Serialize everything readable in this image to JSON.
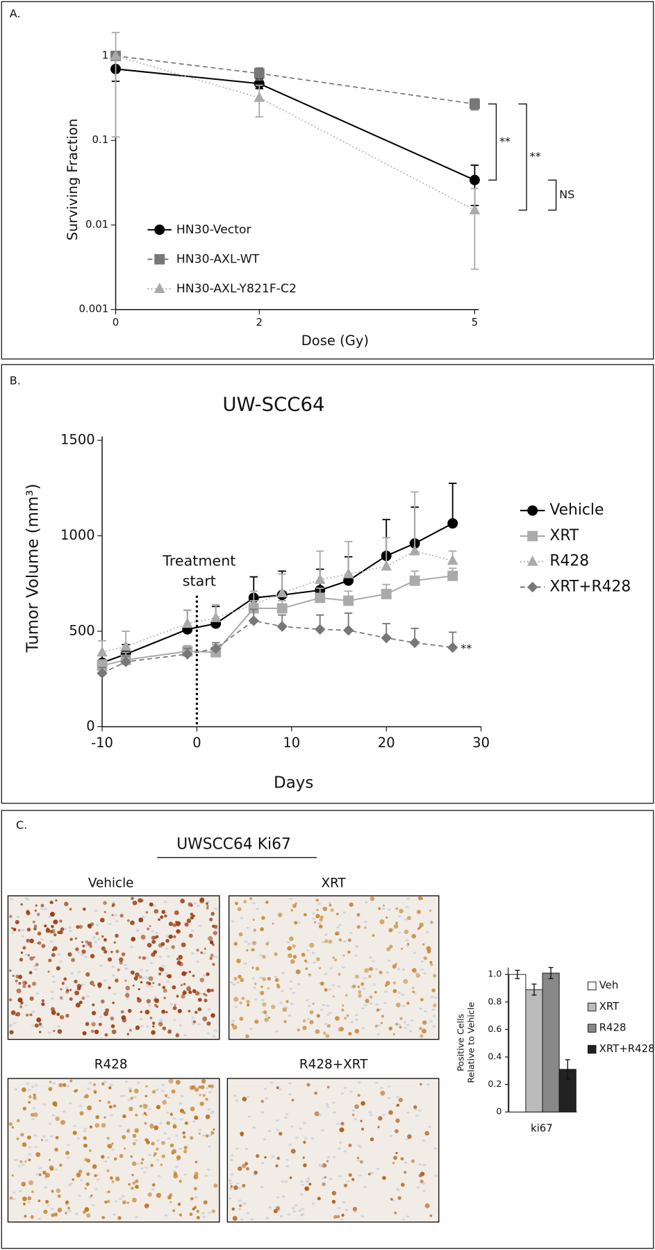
{
  "chart_data": [
    {
      "type": "line",
      "log_y": true,
      "ylabel": "Surviving Fraction",
      "xlabel": "Dose (Gy)",
      "x": [
        0,
        2,
        5
      ],
      "xlim": [
        0,
        5
      ],
      "xticks": [
        0,
        2,
        5
      ],
      "ylim": [
        0.001,
        1
      ],
      "yticks": [
        1,
        0.1,
        0.01,
        0.001
      ],
      "series": [
        {
          "name": "HN30-Vector",
          "color": "#000000",
          "marker": "circle",
          "dash": "solid",
          "values": [
            0.7,
            0.47,
            0.034
          ],
          "errors": [
            0.2,
            0.06,
            0.017
          ]
        },
        {
          "name": "HN30-AXL-WT",
          "color": "#777777",
          "marker": "square",
          "dash": "dashed",
          "values": [
            1.0,
            0.62,
            0.27
          ],
          "errors": [
            0.1,
            0.1,
            0.04
          ]
        },
        {
          "name": "HN30-AXL-Y821F-C2",
          "color": "#aaaaaa",
          "marker": "triangle",
          "dash": "dotted",
          "values": [
            1.0,
            0.32,
            0.015
          ],
          "errors": [
            0.89,
            0.13,
            0.012
          ]
        }
      ],
      "annotations": [
        "**",
        "**",
        "NS"
      ]
    },
    {
      "type": "line",
      "title": "UW-SCC64",
      "ylabel": "Tumor Volume (mm³)",
      "xlabel": "Days",
      "x": [
        -10,
        -7.5,
        -1,
        2,
        6,
        9,
        13,
        16,
        20,
        23,
        27
      ],
      "xlim": [
        -10,
        30
      ],
      "xticks": [
        -10,
        0,
        10,
        20,
        30
      ],
      "ylim": [
        0,
        1500
      ],
      "yticks": [
        0,
        500,
        1000,
        1500
      ],
      "error_direction": "up",
      "vline": 0,
      "vline_label": [
        "Treatment",
        "start"
      ],
      "series": [
        {
          "name": "Vehicle",
          "color": "#000000",
          "marker": "circle",
          "dash": "solid",
          "values": [
            335,
            380,
            510,
            540,
            675,
            690,
            715,
            765,
            895,
            960,
            1065
          ],
          "errors": [
            40,
            50,
            100,
            90,
            110,
            125,
            110,
            125,
            190,
            190,
            210
          ]
        },
        {
          "name": "XRT",
          "color": "#aaaaaa",
          "marker": "square",
          "dash": "solid",
          "values": [
            320,
            350,
            395,
            390,
            620,
            620,
            675,
            660,
            695,
            765,
            790
          ],
          "errors": [
            30,
            40,
            30,
            40,
            40,
            40,
            50,
            50,
            50,
            50,
            40
          ]
        },
        {
          "name": "R428",
          "color": "#aaaaaa",
          "marker": "triangle",
          "dash": "dotted",
          "values": [
            390,
            420,
            540,
            570,
            640,
            700,
            770,
            800,
            840,
            920,
            870
          ],
          "errors": [
            60,
            80,
            70,
            70,
            70,
            100,
            150,
            170,
            150,
            310,
            50
          ]
        },
        {
          "name": "XRT+R428",
          "color": "#777777",
          "marker": "diamond",
          "dash": "dashed",
          "values": [
            280,
            340,
            380,
            410,
            555,
            525,
            510,
            505,
            465,
            440,
            415
          ],
          "errors": [
            30,
            30,
            30,
            30,
            60,
            60,
            75,
            90,
            75,
            75,
            80
          ]
        }
      ],
      "annotations": [
        "**"
      ]
    },
    {
      "type": "bar",
      "ylabel": [
        "Positive Cells",
        "Relative to Vehicle"
      ],
      "xlabel": "ki67",
      "categories": [
        "Veh",
        "XRT",
        "R428",
        "XRT+R428"
      ],
      "values": [
        1.0,
        0.89,
        1.01,
        0.31
      ],
      "errors": [
        0.03,
        0.04,
        0.04,
        0.07
      ],
      "colors": [
        "#ffffff",
        "#bbbbbb",
        "#888888",
        "#222222"
      ],
      "ylim": [
        0,
        1.05
      ],
      "yticks": [
        0,
        0.2,
        0.4,
        0.6,
        0.8,
        {
          "value": 1,
          "label": "1.0"
        }
      ]
    }
  ],
  "panel_labels": [
    "A.",
    "B.",
    "C."
  ],
  "panel_c": {
    "title": "UWSCC64    Ki67",
    "images": [
      "Vehicle",
      "XRT",
      "R428",
      "R428+XRT"
    ]
  }
}
